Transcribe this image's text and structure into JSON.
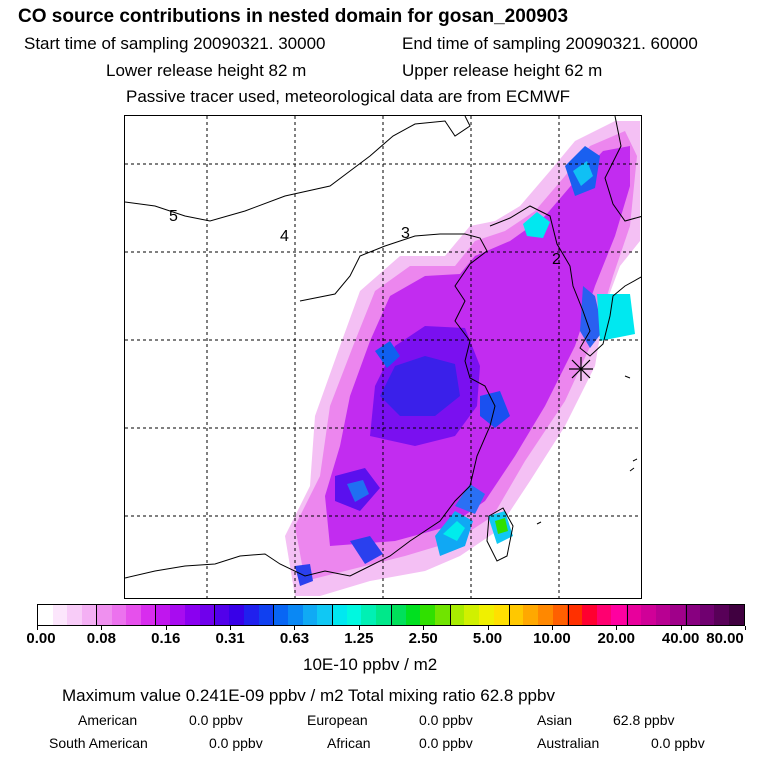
{
  "title": "CO  source contributions in nested domain for gosan_200903",
  "header": {
    "start": "Start time of sampling 20090321. 30000",
    "end": "End time of sampling 20090321. 60000",
    "lower": "Lower release height   82 m",
    "upper": "Upper release height   62 m",
    "tracer": "Passive tracer used, meteorological data are from ECMWF"
  },
  "map": {
    "grid_labels": [
      "5",
      "4",
      "3",
      "2"
    ],
    "receptor_marker": "asterisk"
  },
  "chart_data": {
    "type": "heatmap",
    "title": "CO  source contributions in nested domain for gosan_200903",
    "colorbar": {
      "labels": [
        "0.00",
        "0.08",
        "0.16",
        "0.31",
        "0.63",
        "1.25",
        "2.50",
        "5.00",
        "10.00",
        "20.00",
        "40.00",
        "80.00"
      ],
      "colors": [
        "#ffffff",
        "#fce6fc",
        "#f8ccf8",
        "#f4b0f4",
        "#ef90ef",
        "#ec72ee",
        "#e650ec",
        "#d82cee",
        "#c016ee",
        "#a80cf0",
        "#8a00f0",
        "#7000ec",
        "#5200ea",
        "#3800e8",
        "#2020ee",
        "#1040f0",
        "#0866f4",
        "#0a88f4",
        "#10aaf4",
        "#10c8f4",
        "#00e8f0",
        "#00f8e0",
        "#00f0b4",
        "#00e88a",
        "#00e05a",
        "#00e020",
        "#30e000",
        "#70e400",
        "#a8ec00",
        "#d0f000",
        "#f0f000",
        "#ffe000",
        "#ffc800",
        "#ffa800",
        "#ff8800",
        "#ff6000",
        "#ff3000",
        "#ff0030",
        "#ff0070",
        "#ff00a0",
        "#e8009c",
        "#d00098",
        "#b80092",
        "#a0008a",
        "#880080",
        "#700070",
        "#580058",
        "#400040"
      ],
      "units": "10E-10 ppbv / m2"
    },
    "legend_position": "bottom"
  },
  "summary": {
    "max_line": "Maximum value  0.241E-09 ppbv / m2     Total mixing ratio       62.8 ppbv",
    "regions": [
      {
        "name": "American",
        "value": "0.0 ppbv"
      },
      {
        "name": "European",
        "value": "0.0 ppbv"
      },
      {
        "name": "Asian",
        "value": "62.8 ppbv"
      },
      {
        "name": "South American",
        "value": "0.0 ppbv"
      },
      {
        "name": "African",
        "value": "0.0 ppbv"
      },
      {
        "name": "Australian",
        "value": "0.0 ppbv"
      }
    ]
  }
}
